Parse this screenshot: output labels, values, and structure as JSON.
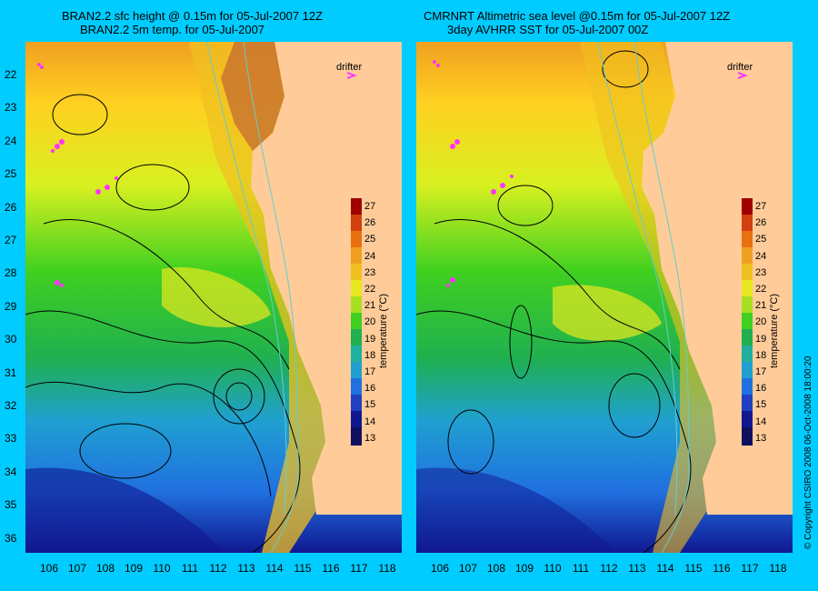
{
  "left_panel": {
    "title_line1": "BRAN2.2 sfc height @ 0.15m for 05-Jul-2007 12Z",
    "title_line2": "BRAN2.2 5m temp. for 05-Jul-2007",
    "drifter_label": "drifter",
    "colorbar_title": "temperature (°C)"
  },
  "right_panel": {
    "title_line1": "CMRNRT Altimetric sea level  @0.15m  for 05-Jul-2007 12Z",
    "title_line2": "3day AVHRR SST for 05-Jul-2007 00Z",
    "drifter_label": "drifter",
    "colorbar_title": "temperature (°C)"
  },
  "axes": {
    "longitudes": [
      "106",
      "107",
      "108",
      "109",
      "110",
      "111",
      "112",
      "113",
      "114",
      "115",
      "116",
      "117",
      "118"
    ],
    "latitudes_left": [
      "22",
      "23",
      "24",
      "25",
      "26",
      "27",
      "28",
      "29",
      "30",
      "31",
      "32",
      "33",
      "34",
      "35",
      "36"
    ]
  },
  "colorbar": {
    "labels": [
      "27",
      "26",
      "25",
      "24",
      "23",
      "22",
      "21",
      "20",
      "19",
      "18",
      "17",
      "16",
      "15",
      "14",
      "13"
    ]
  },
  "copyright": "© Copyright CSIRO 2008    06-Oct-2008 18:00:20",
  "colors": {
    "background": "#00ccff",
    "land": "#ffcc99",
    "drifter": "#ff33ff",
    "contour": "#000000",
    "isobath": "#66cccc"
  }
}
